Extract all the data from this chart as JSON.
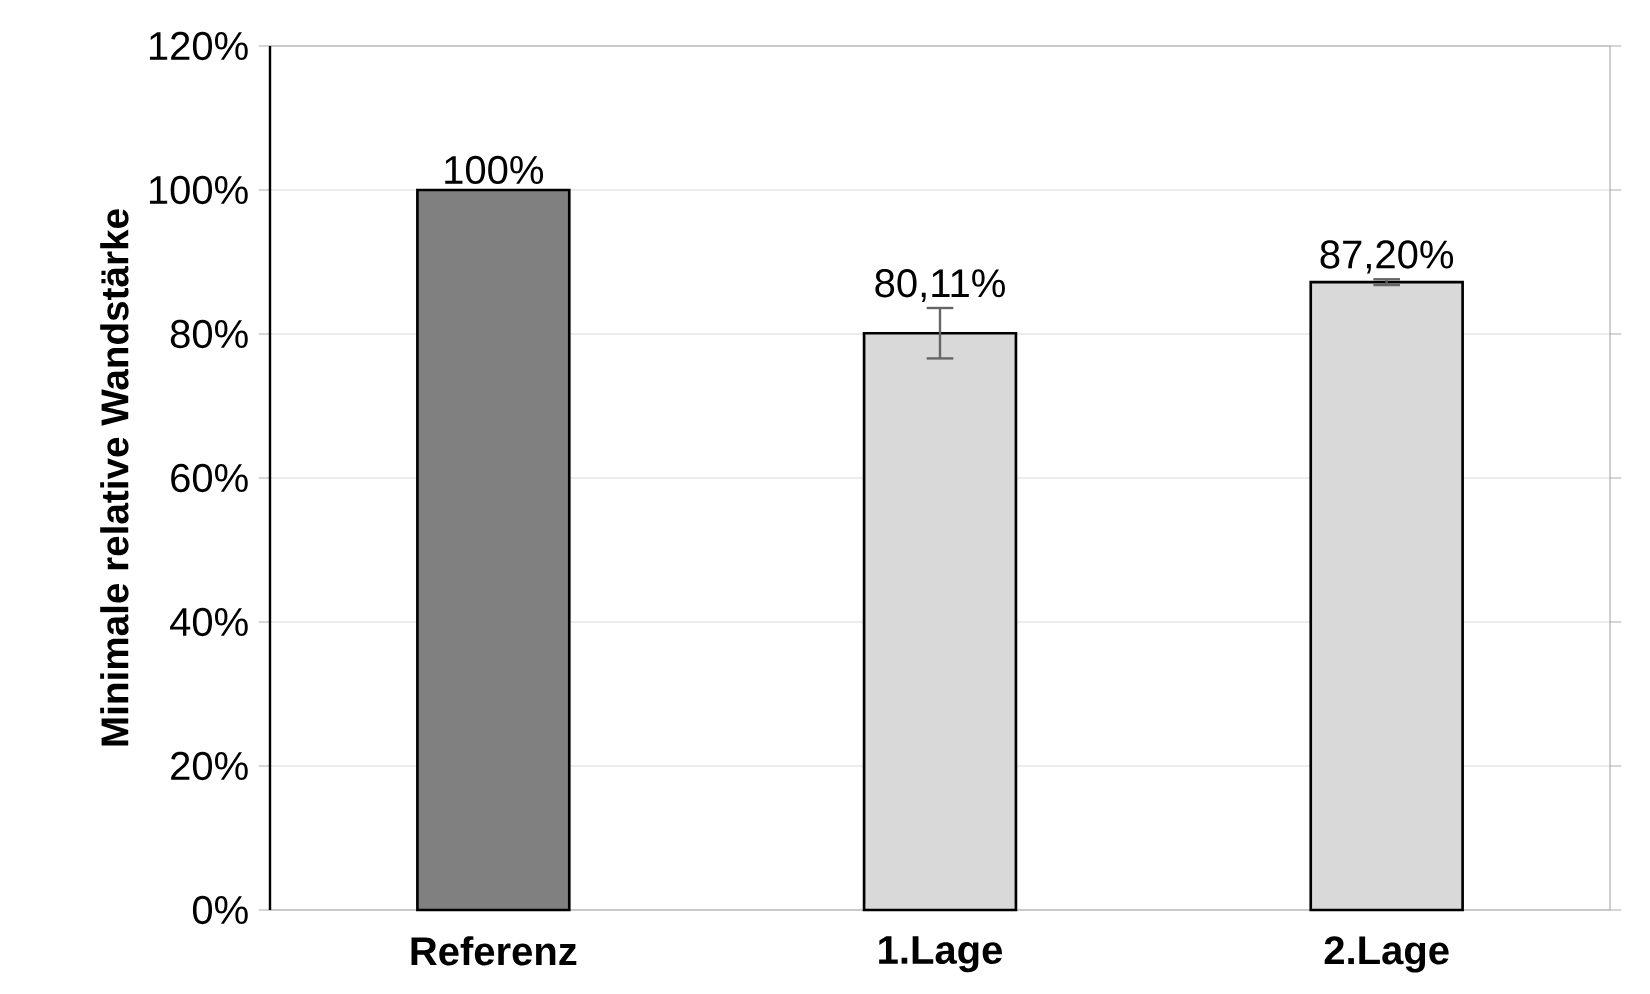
{
  "chart_data": {
    "type": "bar",
    "ylabel": "Minimale relative Wandstärke",
    "categories": [
      "Referenz",
      "1.Lage",
      "2.Lage"
    ],
    "values": [
      100,
      80.11,
      87.2
    ],
    "colors": [
      "#808080",
      "#d9d9d9",
      "#d9d9d9"
    ],
    "errors": [
      null,
      3.5,
      0.4
    ],
    "value_labels": [
      "100%",
      "80,11%",
      "87,20%"
    ],
    "ylim": [
      0,
      120
    ],
    "yticks": [
      {
        "value": 0,
        "label": "0%"
      },
      {
        "value": 20,
        "label": "20%"
      },
      {
        "value": 40,
        "label": "40%"
      },
      {
        "value": 60,
        "label": "60%"
      },
      {
        "value": 80,
        "label": "80%"
      },
      {
        "value": 100,
        "label": "100%"
      },
      {
        "value": 120,
        "label": "120%"
      }
    ],
    "grid": "y"
  }
}
